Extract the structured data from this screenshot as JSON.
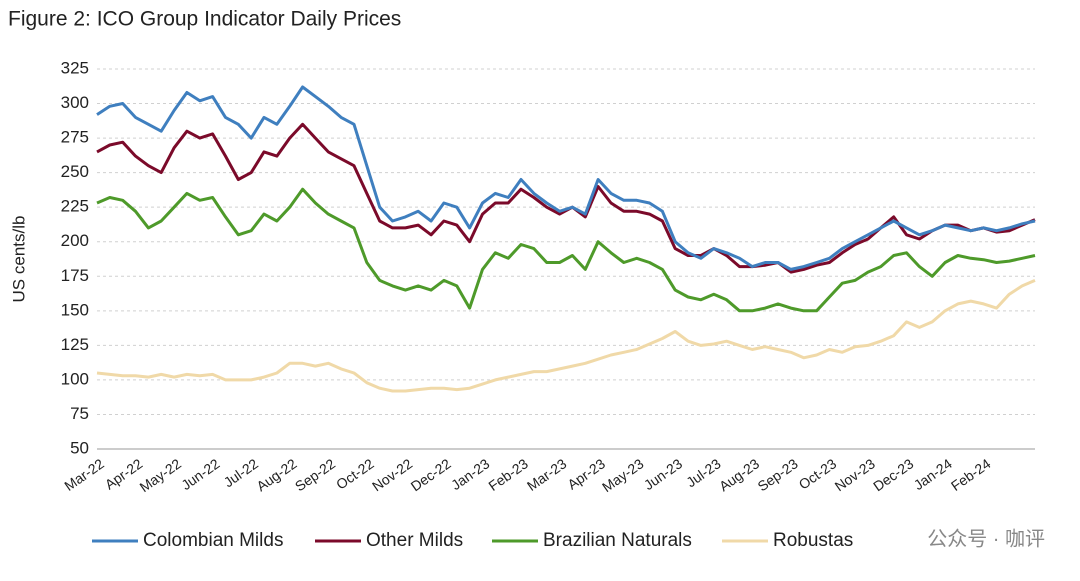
{
  "chart_data": {
    "type": "line",
    "title": "Figure 2: ICO Group Indicator Daily Prices",
    "y_label": "US cents/lb",
    "watermark": "公众号 · 咖评",
    "categories": [
      "Mar-22",
      null,
      null,
      "Apr-22",
      null,
      null,
      "May-22",
      null,
      null,
      "Jun-22",
      null,
      null,
      "Jul-22",
      null,
      null,
      "Aug-22",
      null,
      null,
      "Sep-22",
      null,
      null,
      "Oct-22",
      null,
      null,
      "Nov-22",
      null,
      null,
      "Dec-22",
      null,
      null,
      "Jan-23",
      null,
      null,
      "Feb-23",
      null,
      null,
      "Mar-23",
      null,
      null,
      "Apr-23",
      null,
      null,
      "May-23",
      null,
      null,
      "Jun-23",
      null,
      null,
      "Jul-23",
      null,
      null,
      "Aug-23",
      null,
      null,
      "Sep-23",
      null,
      null,
      "Oct-23",
      null,
      null,
      "Nov-23",
      null,
      null,
      "Dec-23",
      null,
      null,
      "Jan-24",
      null,
      null,
      "Feb-24",
      null,
      null,
      null,
      null
    ],
    "series": [
      {
        "name": "Colombian Milds",
        "color": "#3f7fbf",
        "values": [
          292,
          298,
          300,
          290,
          285,
          280,
          295,
          308,
          302,
          305,
          290,
          285,
          275,
          290,
          285,
          298,
          312,
          305,
          298,
          290,
          285,
          255,
          225,
          215,
          218,
          222,
          215,
          228,
          225,
          210,
          228,
          235,
          232,
          245,
          235,
          228,
          222,
          225,
          220,
          245,
          235,
          230,
          230,
          228,
          222,
          200,
          192,
          188,
          195,
          192,
          188,
          182,
          185,
          185,
          180,
          182,
          185,
          188,
          195,
          200,
          205,
          210,
          215,
          210,
          205,
          208,
          212,
          210,
          208,
          210,
          208,
          210,
          213,
          215
        ]
      },
      {
        "name": "Other Milds",
        "color": "#7b0a2a",
        "values": [
          265,
          270,
          272,
          262,
          255,
          250,
          268,
          280,
          275,
          278,
          262,
          245,
          250,
          265,
          262,
          275,
          285,
          275,
          265,
          260,
          255,
          235,
          215,
          210,
          210,
          212,
          205,
          215,
          212,
          200,
          220,
          228,
          228,
          238,
          232,
          225,
          220,
          225,
          218,
          240,
          228,
          222,
          222,
          220,
          215,
          195,
          190,
          190,
          195,
          190,
          182,
          182,
          183,
          185,
          178,
          180,
          183,
          185,
          192,
          198,
          202,
          210,
          218,
          205,
          202,
          208,
          212,
          212,
          208,
          210,
          207,
          208,
          212,
          216
        ]
      },
      {
        "name": "Brazilian Naturals",
        "color": "#4e9a2a",
        "values": [
          228,
          232,
          230,
          222,
          210,
          215,
          225,
          235,
          230,
          232,
          218,
          205,
          208,
          220,
          215,
          225,
          238,
          228,
          220,
          215,
          210,
          185,
          172,
          168,
          165,
          168,
          165,
          172,
          168,
          152,
          180,
          192,
          188,
          198,
          195,
          185,
          185,
          190,
          180,
          200,
          192,
          185,
          188,
          185,
          180,
          165,
          160,
          158,
          162,
          158,
          150,
          150,
          152,
          155,
          152,
          150,
          150,
          160,
          170,
          172,
          178,
          182,
          190,
          192,
          182,
          175,
          185,
          190,
          188,
          187,
          185,
          186,
          188,
          190
        ]
      },
      {
        "name": "Robustas",
        "color": "#f0d9a8",
        "values": [
          105,
          104,
          103,
          103,
          102,
          104,
          102,
          104,
          103,
          104,
          100,
          100,
          100,
          102,
          105,
          112,
          112,
          110,
          112,
          108,
          105,
          98,
          94,
          92,
          92,
          93,
          94,
          94,
          93,
          94,
          97,
          100,
          102,
          104,
          106,
          106,
          108,
          110,
          112,
          115,
          118,
          120,
          122,
          126,
          130,
          135,
          128,
          125,
          126,
          128,
          125,
          122,
          124,
          122,
          120,
          116,
          118,
          122,
          120,
          124,
          125,
          128,
          132,
          142,
          138,
          142,
          150,
          155,
          157,
          155,
          152,
          162,
          168,
          172
        ]
      }
    ],
    "ylim": [
      50,
      325
    ],
    "yticks": [
      50,
      75,
      100,
      125,
      150,
      175,
      200,
      225,
      250,
      275,
      300,
      325
    ],
    "grid": true
  }
}
